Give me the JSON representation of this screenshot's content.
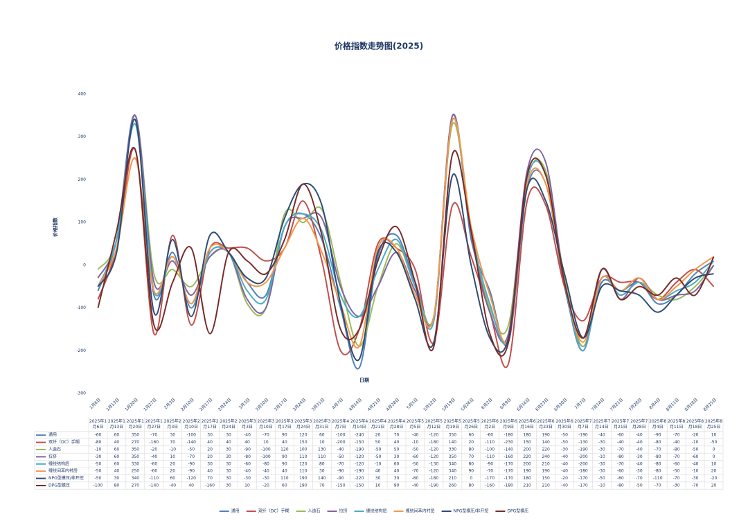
{
  "chart_data": {
    "type": "line",
    "title": "价格指数走势图(2025)",
    "x_label": "日期",
    "y_label": "价格指数",
    "categories": [
      "1月6日",
      "1月13日",
      "1月20日",
      "1月27日",
      "2月3日",
      "2月10日",
      "2月17日",
      "2月24日",
      "3月3日",
      "3月10日",
      "3月17日",
      "3月24日",
      "3月31日",
      "4月7日",
      "4月14日",
      "4月21日",
      "4月28日",
      "5月5日",
      "5月12日",
      "5月19日",
      "5月26日",
      "6月2日",
      "6月9日",
      "6月16日",
      "6月23日",
      "6月30日",
      "7月7日",
      "7月14日",
      "7月21日",
      "7月28日",
      "8月4日",
      "8月11日",
      "8月18日",
      "8月25日"
    ],
    "table_columns": [
      "2025年1月6日",
      "2025年1月13日",
      "2025年1月20日",
      "2025年1月27日",
      "2025年2月3日",
      "2025年2月10日",
      "2025年2月17日",
      "2025年2月24日",
      "2025年3月3日",
      "2025年3月10日",
      "2025年3月17日",
      "2025年3月24日",
      "2025年3月31日",
      "2025年4月7日",
      "2025年4月14日",
      "2025年4月21日",
      "2025年4月28日",
      "2025年5月5日",
      "2025年5月12日",
      "2025年5月19日",
      "2025年5月26日",
      "2025年6月2日",
      "2025年6月9日",
      "2025年6月16日",
      "2025年6月23日",
      "2025年6月30日",
      "2025年7月7日",
      "2025年7月14日",
      "2025年7月21日",
      "2025年7月28日",
      "2025年8月4日",
      "2025年8月11日",
      "2025年8月18日",
      "2025年8月25日"
    ],
    "ylim": [
      -300,
      400
    ],
    "yticks": [
      -300,
      -200,
      -100,
      0,
      100,
      200,
      300,
      400
    ],
    "grid": false,
    "smooth": true,
    "legend": "bottom",
    "series": [
      {
        "name": "通用",
        "color": "#4f81bd",
        "values": [
          -60,
          60,
          350,
          -70,
          30,
          -100,
          30,
          30,
          -40,
          -70,
          90,
          120,
          60,
          -100,
          -240,
          20,
          70,
          -40,
          -120,
          350,
          60,
          -60,
          -180,
          180,
          190,
          -50,
          -190,
          -40,
          -60,
          -40,
          -90,
          -70,
          -20,
          10
        ]
      },
      {
        "name": "双纤（DC）手糊",
        "color": "#c0504d",
        "values": [
          -80,
          40,
          270,
          -160,
          70,
          -140,
          40,
          40,
          40,
          10,
          40,
          150,
          10,
          -200,
          -150,
          50,
          40,
          -10,
          -180,
          140,
          20,
          -110,
          -230,
          150,
          140,
          -50,
          -130,
          -30,
          -40,
          -40,
          -80,
          -40,
          -10,
          -50
        ]
      },
      {
        "name": "人造石",
        "color": "#9bbb59",
        "values": [
          -10,
          60,
          350,
          -20,
          -10,
          -50,
          20,
          30,
          -90,
          -100,
          120,
          100,
          130,
          -40,
          -190,
          -50,
          50,
          -50,
          -120,
          330,
          80,
          -100,
          -140,
          200,
          220,
          -30,
          -190,
          -30,
          -70,
          -40,
          -70,
          -80,
          -50,
          0
        ]
      },
      {
        "name": "拉挤",
        "color": "#8064a2",
        "values": [
          -30,
          60,
          350,
          -40,
          10,
          -70,
          20,
          30,
          -80,
          -100,
          90,
          110,
          110,
          -50,
          -120,
          -50,
          30,
          -60,
          -120,
          350,
          70,
          -110,
          -160,
          220,
          240,
          -40,
          -200,
          -10,
          -80,
          -30,
          -80,
          -70,
          -60,
          0
        ]
      },
      {
        "name": "缠绕结构层",
        "color": "#4bacc6",
        "values": [
          -50,
          60,
          330,
          -60,
          20,
          -90,
          30,
          30,
          -60,
          -80,
          90,
          120,
          80,
          -70,
          -120,
          -10,
          60,
          -50,
          -130,
          340,
          80,
          -90,
          -170,
          200,
          210,
          -40,
          -200,
          -30,
          -70,
          -40,
          -80,
          -60,
          -40,
          10
        ]
      },
      {
        "name": "缠绕间苯内衬层",
        "color": "#f79646",
        "values": [
          -50,
          40,
          250,
          -60,
          20,
          -90,
          40,
          30,
          -40,
          -40,
          40,
          110,
          30,
          -90,
          -190,
          40,
          40,
          -70,
          -120,
          340,
          90,
          -70,
          -170,
          190,
          190,
          -40,
          -180,
          -30,
          -60,
          -30,
          -80,
          -50,
          -10,
          20
        ]
      },
      {
        "name": "NPG型模压/非开挖",
        "color": "#2c4d75",
        "values": [
          -50,
          30,
          340,
          -110,
          60,
          -120,
          70,
          30,
          -30,
          -30,
          110,
          190,
          140,
          -90,
          -220,
          30,
          30,
          -80,
          -180,
          210,
          0,
          -170,
          -170,
          180,
          150,
          -20,
          -170,
          -50,
          -60,
          -70,
          -110,
          -70,
          -30,
          -20
        ]
      },
      {
        "name": "DPG型模压",
        "color": "#772c2a",
        "values": [
          -100,
          80,
          270,
          -140,
          -40,
          40,
          -160,
          30,
          10,
          -20,
          60,
          190,
          70,
          -150,
          -150,
          10,
          90,
          -40,
          -190,
          260,
          80,
          -160,
          -180,
          210,
          210,
          -40,
          -170,
          -10,
          -80,
          -50,
          -70,
          -30,
          -70,
          20
        ]
      }
    ]
  }
}
